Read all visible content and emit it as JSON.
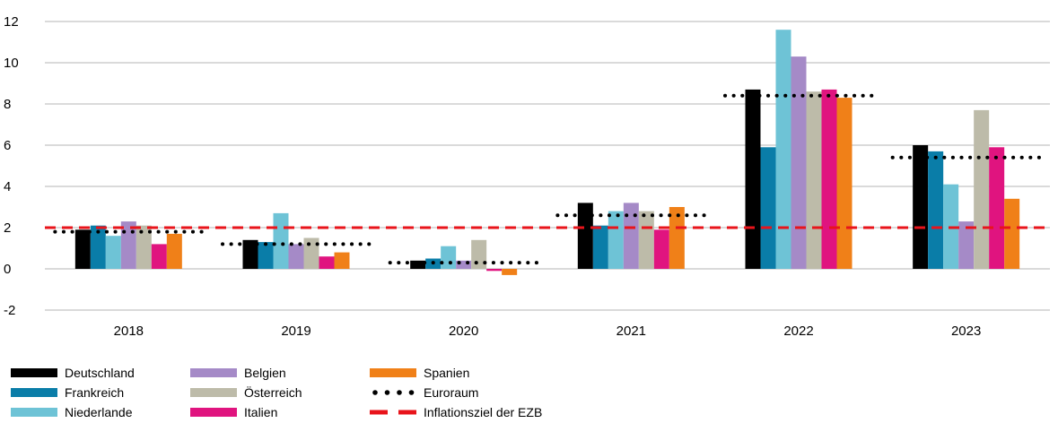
{
  "chart_data": {
    "type": "bar",
    "title": "",
    "xlabel": "",
    "ylabel": "",
    "ylim": [
      -2,
      12
    ],
    "yticks": [
      -2,
      0,
      2,
      4,
      6,
      8,
      10,
      12
    ],
    "grid": "horizontal",
    "legend_position": "bottom-left",
    "categories": [
      "2018",
      "2019",
      "2020",
      "2021",
      "2022",
      "2023"
    ],
    "series": [
      {
        "name": "Deutschland",
        "color": "#000000",
        "values": [
          1.9,
          1.4,
          0.4,
          3.2,
          8.7,
          6.0
        ]
      },
      {
        "name": "Frankreich",
        "color": "#0a7da8",
        "values": [
          2.1,
          1.3,
          0.5,
          2.1,
          5.9,
          5.7
        ]
      },
      {
        "name": "Niederlande",
        "color": "#6ec3d6",
        "values": [
          1.6,
          2.7,
          1.1,
          2.8,
          11.6,
          4.1
        ]
      },
      {
        "name": "Belgien",
        "color": "#a58ac7",
        "values": [
          2.3,
          1.2,
          0.4,
          3.2,
          10.3,
          2.3
        ]
      },
      {
        "name": "Österreich",
        "color": "#bdbba9",
        "values": [
          2.1,
          1.5,
          1.4,
          2.8,
          8.6,
          7.7
        ]
      },
      {
        "name": "Italien",
        "color": "#e0147f",
        "values": [
          1.2,
          0.6,
          -0.1,
          1.9,
          8.7,
          5.9
        ]
      },
      {
        "name": "Spanien",
        "color": "#f08018",
        "values": [
          1.7,
          0.8,
          -0.3,
          3.0,
          8.3,
          3.4
        ]
      }
    ],
    "reference_series": [
      {
        "name": "Euroraum",
        "style": "dotted",
        "color": "#000000",
        "values": [
          1.8,
          1.2,
          0.3,
          2.6,
          8.4,
          5.4
        ]
      }
    ],
    "reference_line": {
      "name": "Inflationsziel der EZB",
      "style": "dashed",
      "color": "#e8141b",
      "value": 2.0
    }
  }
}
